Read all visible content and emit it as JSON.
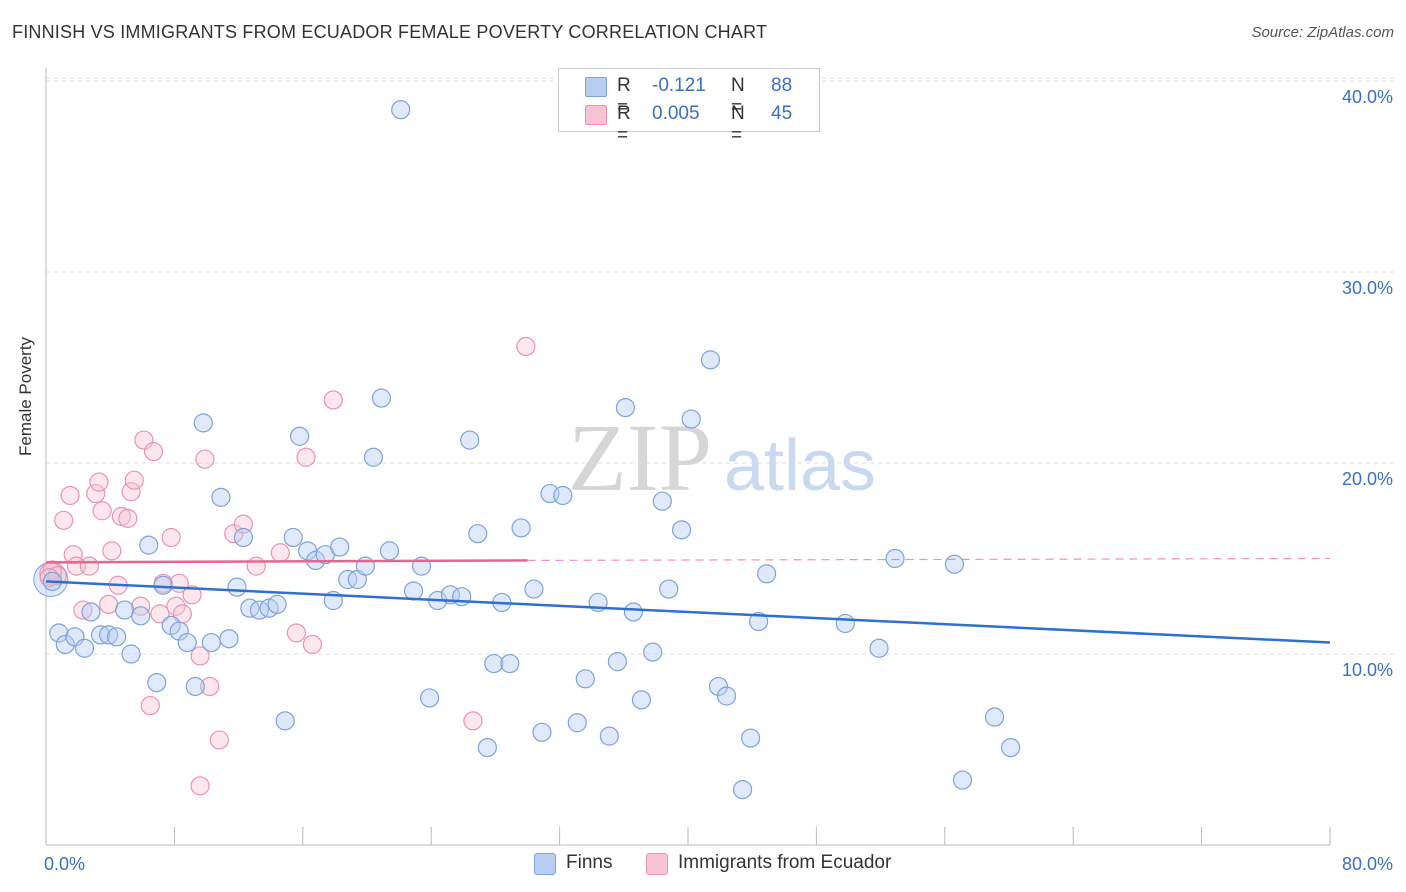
{
  "title": "FINNISH VS IMMIGRANTS FROM ECUADOR FEMALE POVERTY CORRELATION CHART",
  "source": "Source: ZipAtlas.com",
  "watermark": {
    "zip": "ZIP",
    "atlas": "atlas"
  },
  "colors": {
    "finns_fill": "#b7cef1",
    "finns_stroke": "#7da3dc",
    "finns_line": "#2f6fcf",
    "ecuador_fill": "#f8c4d3",
    "ecuador_stroke": "#ec93b0",
    "ecuador_line": "#e8668e",
    "tick_label": "#3a6fc4",
    "grid": "#dddddd"
  },
  "legend": {
    "rows": [
      {
        "r_label": "R =",
        "r_value": "-0.121",
        "n_label": "N =",
        "n_value": "88"
      },
      {
        "r_label": "R =",
        "r_value": "0.005",
        "n_label": "N =",
        "n_value": "45"
      }
    ]
  },
  "bottom_legend": {
    "finns": "Finns",
    "ecuador": "Immigrants from Ecuador"
  },
  "chart_data": {
    "type": "scatter",
    "title": "FINNISH VS IMMIGRANTS FROM ECUADOR FEMALE POVERTY CORRELATION CHART",
    "xlabel": "",
    "ylabel": "Female Poverty",
    "xlim": [
      0,
      80
    ],
    "ylim": [
      0,
      42
    ],
    "x_tick_labels": [
      "0.0%",
      "80.0%"
    ],
    "y_ticks": [
      10,
      20,
      30,
      40
    ],
    "y_tick_labels": [
      "10.0%",
      "20.0%",
      "30.0%",
      "40.0%"
    ],
    "grid": "horizontal dashed",
    "series": [
      {
        "name": "Finns",
        "trend": {
          "x": [
            0,
            80
          ],
          "y": [
            13.8,
            10.6
          ]
        },
        "points": [
          [
            0.4,
            13.8
          ],
          [
            0.8,
            11.1
          ],
          [
            1.2,
            10.5
          ],
          [
            1.8,
            10.9
          ],
          [
            2.4,
            10.3
          ],
          [
            2.8,
            12.2
          ],
          [
            3.4,
            11.0
          ],
          [
            3.9,
            11.0
          ],
          [
            4.4,
            10.9
          ],
          [
            4.9,
            12.3
          ],
          [
            5.3,
            10.0
          ],
          [
            5.9,
            12.0
          ],
          [
            6.4,
            15.7
          ],
          [
            6.9,
            8.5
          ],
          [
            7.3,
            13.6
          ],
          [
            7.8,
            11.5
          ],
          [
            8.3,
            11.2
          ],
          [
            8.8,
            10.6
          ],
          [
            9.3,
            8.3
          ],
          [
            9.8,
            22.1
          ],
          [
            10.3,
            10.6
          ],
          [
            10.9,
            18.2
          ],
          [
            11.4,
            10.8
          ],
          [
            11.9,
            13.5
          ],
          [
            12.3,
            16.1
          ],
          [
            12.7,
            12.4
          ],
          [
            13.3,
            12.3
          ],
          [
            13.9,
            12.4
          ],
          [
            14.4,
            12.6
          ],
          [
            14.9,
            6.5
          ],
          [
            15.4,
            16.1
          ],
          [
            15.8,
            21.4
          ],
          [
            16.3,
            15.4
          ],
          [
            16.8,
            14.9
          ],
          [
            17.4,
            15.2
          ],
          [
            17.9,
            12.8
          ],
          [
            18.3,
            15.6
          ],
          [
            18.8,
            13.9
          ],
          [
            19.4,
            13.9
          ],
          [
            19.9,
            14.6
          ],
          [
            20.4,
            20.3
          ],
          [
            20.9,
            23.4
          ],
          [
            21.4,
            15.4
          ],
          [
            22.1,
            38.5
          ],
          [
            22.9,
            13.3
          ],
          [
            23.4,
            14.6
          ],
          [
            23.9,
            7.7
          ],
          [
            24.4,
            12.8
          ],
          [
            25.2,
            13.1
          ],
          [
            25.9,
            13.0
          ],
          [
            26.4,
            21.2
          ],
          [
            26.9,
            16.3
          ],
          [
            27.5,
            5.1
          ],
          [
            27.9,
            9.5
          ],
          [
            28.4,
            12.7
          ],
          [
            28.9,
            9.5
          ],
          [
            29.6,
            16.6
          ],
          [
            30.4,
            13.4
          ],
          [
            30.9,
            5.9
          ],
          [
            31.4,
            18.4
          ],
          [
            32.2,
            18.3
          ],
          [
            33.1,
            6.4
          ],
          [
            33.6,
            8.7
          ],
          [
            34.4,
            12.7
          ],
          [
            35.1,
            5.7
          ],
          [
            35.6,
            9.6
          ],
          [
            36.1,
            22.9
          ],
          [
            36.6,
            12.2
          ],
          [
            37.1,
            7.6
          ],
          [
            37.8,
            10.1
          ],
          [
            38.4,
            18.0
          ],
          [
            38.8,
            13.4
          ],
          [
            39.6,
            16.5
          ],
          [
            40.2,
            22.3
          ],
          [
            41.4,
            25.4
          ],
          [
            41.9,
            8.3
          ],
          [
            42.4,
            7.8
          ],
          [
            43.4,
            2.9
          ],
          [
            43.9,
            5.6
          ],
          [
            44.4,
            11.7
          ],
          [
            44.9,
            14.2
          ],
          [
            49.8,
            11.6
          ],
          [
            51.9,
            10.3
          ],
          [
            52.9,
            15.0
          ],
          [
            56.6,
            14.7
          ],
          [
            57.1,
            3.4
          ],
          [
            59.1,
            6.7
          ],
          [
            60.1,
            5.1
          ]
        ]
      },
      {
        "name": "Immigrants from Ecuador",
        "trend": {
          "x": [
            0,
            30
          ],
          "y": [
            14.8,
            14.9
          ]
        },
        "trend_extension": {
          "x": [
            30,
            80
          ],
          "y": [
            14.9,
            15.0
          ]
        },
        "points": [
          [
            0.4,
            14.4
          ],
          [
            0.7,
            14.1
          ],
          [
            1.1,
            17.0
          ],
          [
            1.5,
            18.3
          ],
          [
            1.7,
            15.2
          ],
          [
            1.9,
            14.6
          ],
          [
            2.3,
            12.3
          ],
          [
            2.7,
            14.6
          ],
          [
            3.1,
            18.4
          ],
          [
            3.3,
            19.0
          ],
          [
            3.5,
            17.5
          ],
          [
            3.9,
            12.6
          ],
          [
            4.1,
            15.4
          ],
          [
            4.5,
            13.6
          ],
          [
            4.7,
            17.2
          ],
          [
            5.1,
            17.1
          ],
          [
            5.3,
            18.5
          ],
          [
            5.5,
            19.1
          ],
          [
            5.9,
            12.5
          ],
          [
            6.1,
            21.2
          ],
          [
            6.5,
            7.3
          ],
          [
            6.7,
            20.6
          ],
          [
            7.1,
            12.1
          ],
          [
            7.3,
            13.7
          ],
          [
            7.8,
            16.1
          ],
          [
            8.1,
            12.5
          ],
          [
            8.3,
            13.7
          ],
          [
            8.5,
            12.1
          ],
          [
            9.1,
            13.1
          ],
          [
            9.6,
            9.9
          ],
          [
            9.9,
            20.2
          ],
          [
            10.2,
            8.3
          ],
          [
            10.8,
            5.5
          ],
          [
            11.7,
            16.3
          ],
          [
            12.3,
            16.8
          ],
          [
            13.1,
            14.6
          ],
          [
            14.6,
            15.3
          ],
          [
            15.6,
            11.1
          ],
          [
            16.2,
            20.3
          ],
          [
            16.6,
            10.5
          ],
          [
            17.9,
            23.3
          ],
          [
            26.6,
            6.5
          ],
          [
            29.9,
            26.1
          ],
          [
            9.6,
            3.1
          ],
          [
            0.2,
            14.0
          ]
        ]
      }
    ]
  }
}
